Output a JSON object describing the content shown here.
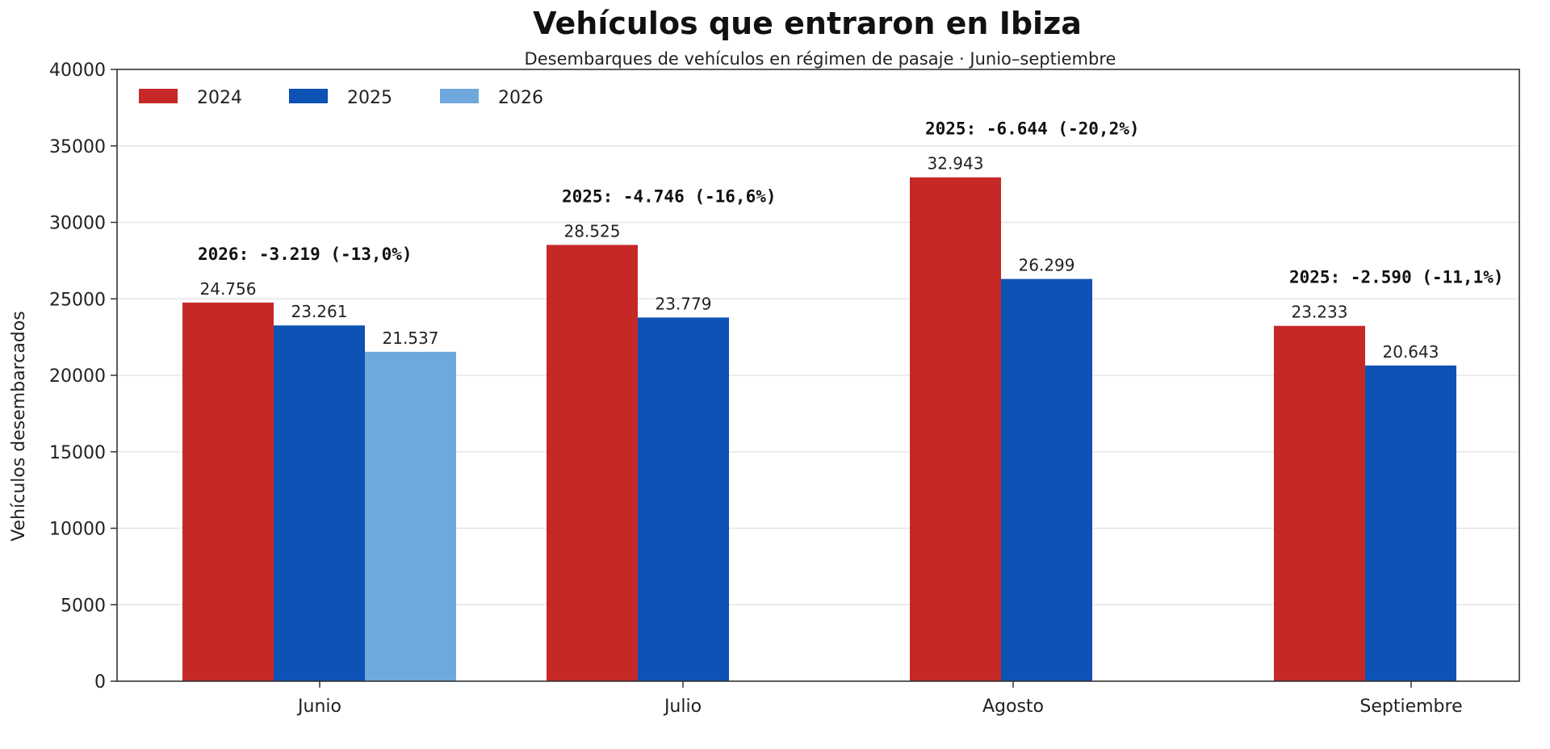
{
  "chart_data": {
    "type": "bar",
    "title": "Vehículos que entraron en Ibiza",
    "subtitle": "Desembarques de vehículos en régimen de pasaje · Junio–septiembre",
    "ylabel": "Vehículos desembarcados",
    "xlabel": "",
    "ylim": [
      0,
      40000
    ],
    "yticks": [
      0,
      5000,
      10000,
      15000,
      20000,
      25000,
      30000,
      35000,
      40000
    ],
    "grid": true,
    "legend_position": "top-left",
    "categories": [
      "Junio",
      "Julio",
      "Agosto",
      "Septiembre"
    ],
    "series": [
      {
        "name": "2024",
        "color": "#c62828",
        "values": [
          24756,
          28525,
          32943,
          23233
        ],
        "labels": [
          "24.756",
          "28.525",
          "32.943",
          "23.233"
        ]
      },
      {
        "name": "2025",
        "color": "#0d52b5",
        "values": [
          23261,
          23779,
          26299,
          20643
        ],
        "labels": [
          "23.261",
          "23.779",
          "26.299",
          "20.643"
        ]
      },
      {
        "name": "2026",
        "color": "#6fa8dc",
        "values": [
          21537,
          null,
          null,
          null
        ],
        "labels": [
          "21.537",
          "",
          "",
          ""
        ]
      }
    ],
    "annotations": [
      "2026: -3.219 (-13,0%)",
      "2025: -4.746 (-16,6%)",
      "2025: -6.644 (-20,2%)",
      "2025: -2.590 (-11,1%)"
    ]
  }
}
